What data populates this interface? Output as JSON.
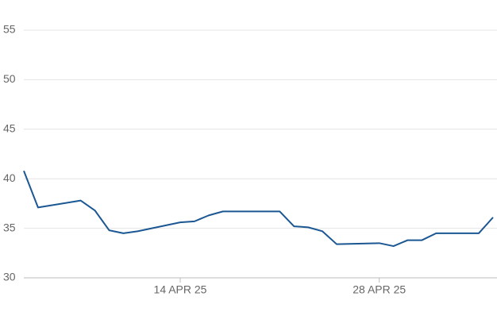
{
  "chart_data": {
    "type": "line",
    "x": [
      "2025-04-03",
      "2025-04-04",
      "2025-04-07",
      "2025-04-08",
      "2025-04-09",
      "2025-04-10",
      "2025-04-11",
      "2025-04-14",
      "2025-04-15",
      "2025-04-16",
      "2025-04-17",
      "2025-04-21",
      "2025-04-22",
      "2025-04-23",
      "2025-04-24",
      "2025-04-25",
      "2025-04-28",
      "2025-04-29",
      "2025-04-30",
      "2025-05-01",
      "2025-05-02",
      "2025-05-05",
      "2025-05-06"
    ],
    "series": [
      {
        "color": "#1b5793",
        "values": [
          40.8,
          37.1,
          37.8,
          36.8,
          34.8,
          34.5,
          34.7,
          35.6,
          35.7,
          36.3,
          36.7,
          36.7,
          35.2,
          35.1,
          34.7,
          33.4,
          33.5,
          33.2,
          33.8,
          33.8,
          34.5,
          34.5,
          36.1
        ]
      }
    ],
    "xlim": [
      "2025-04-03",
      "2025-05-06"
    ],
    "xticks": [
      {
        "value": "2025-04-14",
        "label": "14 APR 25"
      },
      {
        "value": "2025-04-28",
        "label": "28 APR 25"
      }
    ],
    "ylim": [
      30,
      55
    ],
    "yticks": [
      30,
      35,
      40,
      45,
      50,
      55
    ],
    "grid": true
  }
}
